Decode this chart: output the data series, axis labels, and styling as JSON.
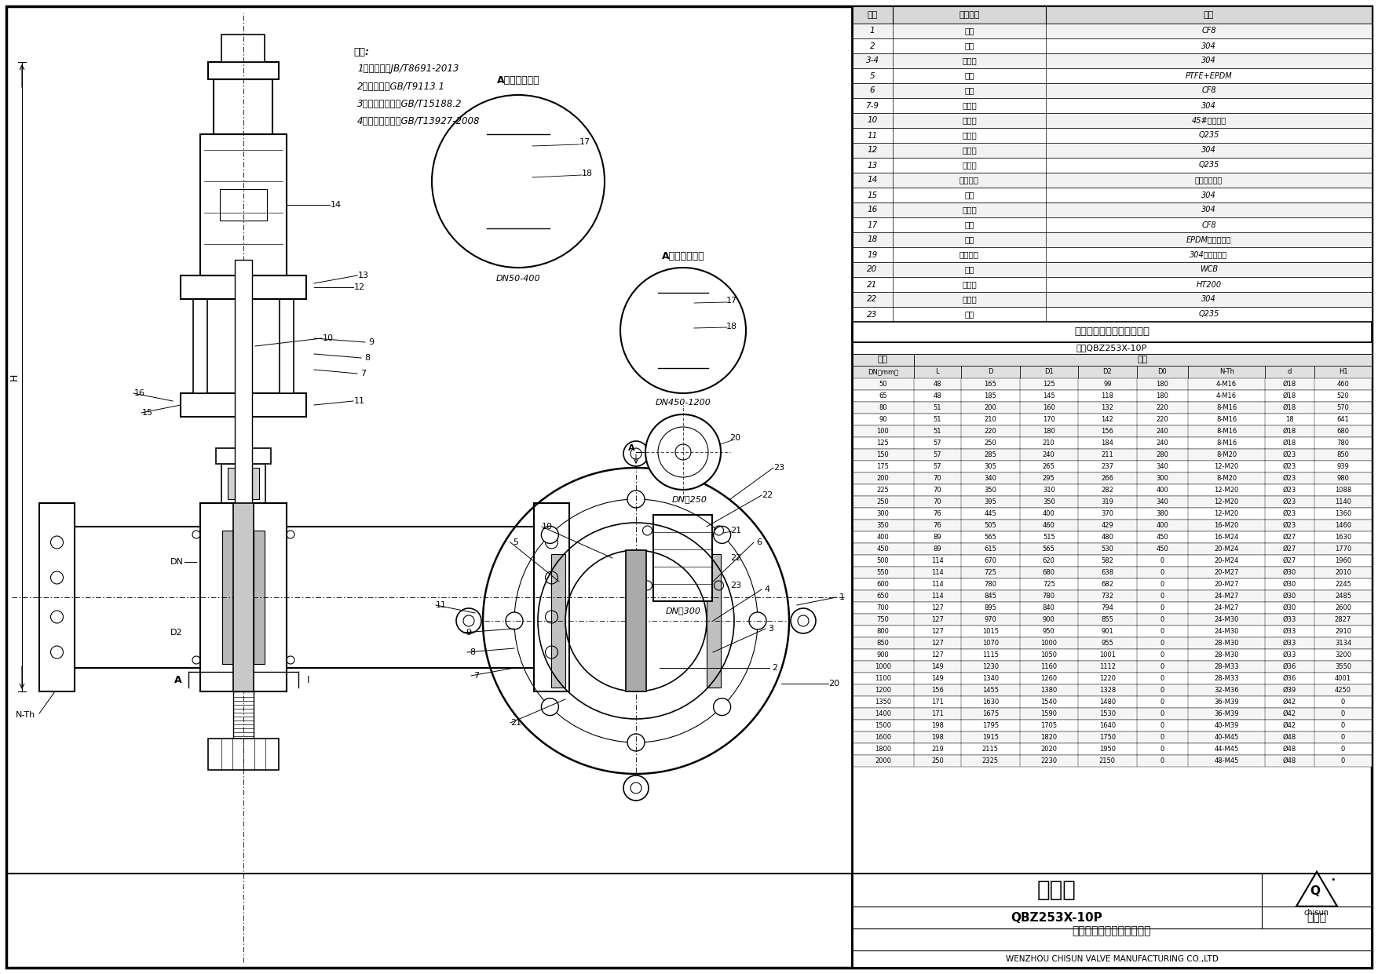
{
  "title": "刀闸阀",
  "model": "QBZ253X-10P",
  "drawing_type": "总装图",
  "company_cn": "温州奇胜阀门制造有限公司",
  "company_en": "WENZHOU CHISUN VALVE MANUFACTURING CO.,LTD",
  "notes_title": "备注:",
  "notes": [
    "1、设计按：JB/T8691-2013",
    "2、法兰按：GB/T9113.1",
    "3、结构长度按：GB/T15188.2",
    "4、试验和验收：GB/T13927-2008"
  ],
  "parts": [
    [
      "1",
      "阀体",
      "CF8"
    ],
    [
      "2",
      "闸板",
      "304"
    ],
    [
      "3-4",
      "标准件",
      "304"
    ],
    [
      "5",
      "填料",
      "PTFE+EPDM"
    ],
    [
      "6",
      "压盖",
      "CF8"
    ],
    [
      "7-9",
      "标准件",
      "304"
    ],
    [
      "10",
      "活塞杆",
      "45#调质镀铬"
    ],
    [
      "11",
      "支架板",
      "Q235"
    ],
    [
      "12",
      "标准件",
      "304"
    ],
    [
      "13",
      "支架头",
      "Q235"
    ],
    [
      "14",
      "电液动头",
      "根据客户要求"
    ],
    [
      "15",
      "销轴",
      "304"
    ],
    [
      "16",
      "标准件",
      "304"
    ],
    [
      "17",
      "锁块",
      "CF8"
    ],
    [
      "18",
      "阀座",
      "EPDM（可更换）"
    ],
    [
      "19",
      "金属压套",
      "304（可更换）"
    ],
    [
      "20",
      "夹头",
      "WCB"
    ],
    [
      "21",
      "支架头",
      "HT200"
    ],
    [
      "22",
      "标准件",
      "304"
    ],
    [
      "23",
      "圆柱",
      "Q235"
    ]
  ],
  "dim_title": "刀闸阀主要外形及连接尺寸",
  "dim_model": "型号QBZ253X-10P",
  "dim_sub_header": [
    "DN（mm）",
    "L",
    "D",
    "D1",
    "D2",
    "D0",
    "N-Th",
    "d",
    "H1"
  ],
  "dim_data": [
    [
      "50",
      "48",
      "165",
      "125",
      "99",
      "180",
      "4-M16",
      "Ø18",
      "460"
    ],
    [
      "65",
      "48",
      "185",
      "145",
      "118",
      "180",
      "4-M16",
      "Ø18",
      "520"
    ],
    [
      "80",
      "51",
      "200",
      "160",
      "132",
      "220",
      "8-M16",
      "Ø18",
      "570"
    ],
    [
      "90",
      "51",
      "210",
      "170",
      "142",
      "220",
      "8-M16",
      "18",
      "641"
    ],
    [
      "100",
      "51",
      "220",
      "180",
      "156",
      "240",
      "8-M16",
      "Ø18",
      "680"
    ],
    [
      "125",
      "57",
      "250",
      "210",
      "184",
      "240",
      "8-M16",
      "Ø18",
      "780"
    ],
    [
      "150",
      "57",
      "285",
      "240",
      "211",
      "280",
      "8-M20",
      "Ø23",
      "850"
    ],
    [
      "175",
      "57",
      "305",
      "265",
      "237",
      "340",
      "12-M20",
      "Ø23",
      "939"
    ],
    [
      "200",
      "70",
      "340",
      "295",
      "266",
      "300",
      "8-M20",
      "Ø23",
      "980"
    ],
    [
      "225",
      "70",
      "350",
      "310",
      "282",
      "400",
      "12-M20",
      "Ø23",
      "1088"
    ],
    [
      "250",
      "70",
      "395",
      "350",
      "319",
      "340",
      "12-M20",
      "Ø23",
      "1140"
    ],
    [
      "300",
      "76",
      "445",
      "400",
      "370",
      "380",
      "12-M20",
      "Ø23",
      "1360"
    ],
    [
      "350",
      "76",
      "505",
      "460",
      "429",
      "400",
      "16-M20",
      "Ø23",
      "1460"
    ],
    [
      "400",
      "89",
      "565",
      "515",
      "480",
      "450",
      "16-M24",
      "Ø27",
      "1630"
    ],
    [
      "450",
      "89",
      "615",
      "565",
      "530",
      "450",
      "20-M24",
      "Ø27",
      "1770"
    ],
    [
      "500",
      "114",
      "670",
      "620",
      "582",
      "0",
      "20-M24",
      "Ø27",
      "1960"
    ],
    [
      "550",
      "114",
      "725",
      "680",
      "638",
      "0",
      "20-M27",
      "Ø30",
      "2010"
    ],
    [
      "600",
      "114",
      "780",
      "725",
      "682",
      "0",
      "20-M27",
      "Ø30",
      "2245"
    ],
    [
      "650",
      "114",
      "845",
      "780",
      "732",
      "0",
      "24-M27",
      "Ø30",
      "2485"
    ],
    [
      "700",
      "127",
      "895",
      "840",
      "794",
      "0",
      "24-M27",
      "Ø30",
      "2600"
    ],
    [
      "750",
      "127",
      "970",
      "900",
      "855",
      "0",
      "24-M30",
      "Ø33",
      "2827"
    ],
    [
      "800",
      "127",
      "1015",
      "950",
      "901",
      "0",
      "24-M30",
      "Ø33",
      "2910"
    ],
    [
      "850",
      "127",
      "1070",
      "1000",
      "955",
      "0",
      "28-M30",
      "Ø33",
      "3134"
    ],
    [
      "900",
      "127",
      "1115",
      "1050",
      "1001",
      "0",
      "28-M30",
      "Ø33",
      "3200"
    ],
    [
      "1000",
      "149",
      "1230",
      "1160",
      "1112",
      "0",
      "28-M33",
      "Ø36",
      "3550"
    ],
    [
      "1100",
      "149",
      "1340",
      "1260",
      "1220",
      "0",
      "28-M33",
      "Ø36",
      "4001"
    ],
    [
      "1200",
      "156",
      "1455",
      "1380",
      "1328",
      "0",
      "32-M36",
      "Ø39",
      "4250"
    ],
    [
      "1350",
      "171",
      "1630",
      "1540",
      "1480",
      "0",
      "36-M39",
      "Ø42",
      "0"
    ],
    [
      "1400",
      "171",
      "1675",
      "1590",
      "1530",
      "0",
      "36-M39",
      "Ø42",
      "0"
    ],
    [
      "1500",
      "198",
      "1795",
      "1705",
      "1640",
      "0",
      "40-M39",
      "Ø42",
      "0"
    ],
    [
      "1600",
      "198",
      "1915",
      "1820",
      "1750",
      "0",
      "40-M45",
      "Ø48",
      "0"
    ],
    [
      "1800",
      "219",
      "2115",
      "2020",
      "1950",
      "0",
      "44-M45",
      "Ø48",
      "0"
    ],
    [
      "2000",
      "250",
      "2325",
      "2230",
      "2150",
      "0",
      "48-M45",
      "Ø48",
      "0"
    ]
  ],
  "detail_label_a": "A局部放大视图",
  "detail_dn_top": "DN50-400",
  "detail_label_a2": "A局部放大视图",
  "detail_dn_mid": "DN450-1200",
  "detail_label_dn250": "DN＞250",
  "detail_label_dn300": "DN＞300"
}
